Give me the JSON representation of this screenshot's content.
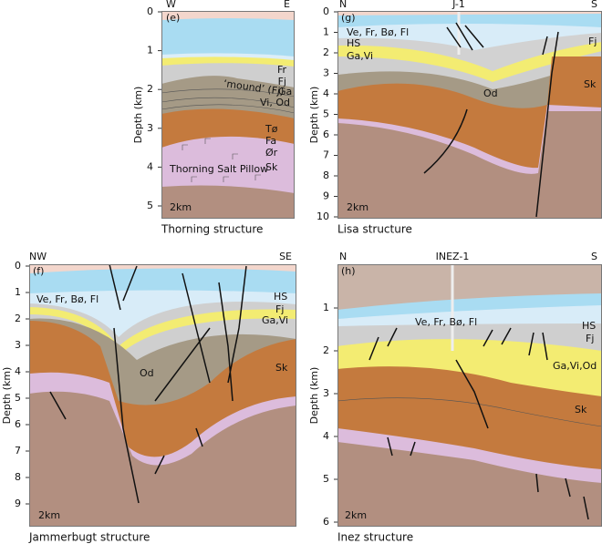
{
  "panels": [
    {
      "label": "(e)",
      "left": "W",
      "right": "E",
      "axis_title": "Depth (km)",
      "depth_ticks": [
        0,
        1,
        2,
        3,
        4,
        5
      ],
      "scale": "2km",
      "caption": "Thorning structure",
      "units": [
        "Fr",
        "Fj",
        "‘mound’ (Fj)",
        "Ga",
        "Vi, Od",
        "Tø",
        "Fa",
        "Ør",
        "Sk",
        "Thorning Salt Pillow"
      ]
    },
    {
      "label": "(g)",
      "left": "N",
      "well": "J-1",
      "right": "S",
      "axis_title": "Depth (km)",
      "depth_ticks": [
        0,
        1,
        2,
        3,
        4,
        5,
        6,
        7,
        8,
        9,
        10
      ],
      "scale": "2km",
      "caption": "Lisa structure",
      "units": [
        "Ve, Fr, Bø, Fl",
        "HS",
        "Ga,Vi",
        "Fj",
        "Od",
        "Sk"
      ]
    },
    {
      "label": "(f)",
      "left": "NW",
      "right": "SE",
      "axis_title": "Depth (km)",
      "depth_ticks": [
        0,
        1,
        2,
        3,
        4,
        5,
        6,
        7,
        8,
        9
      ],
      "scale": "2km",
      "caption": "Jammerbugt structure",
      "units": [
        "Ve, Fr, Bø, Fl",
        "HS",
        "Fj",
        "Ga,Vi",
        "Od",
        "Sk"
      ]
    },
    {
      "label": "(h)",
      "left": "N",
      "well": "INEZ-1",
      "right": "S",
      "axis_title": "Depth (km)",
      "depth_ticks": [
        1,
        2,
        3,
        4,
        5,
        6
      ],
      "scale": "2km",
      "caption": "Inez structure",
      "units": [
        "Ve, Fr, Bø, Fl",
        "HS",
        "Fj",
        "Ga,Vi,Od",
        "Sk"
      ]
    }
  ]
}
